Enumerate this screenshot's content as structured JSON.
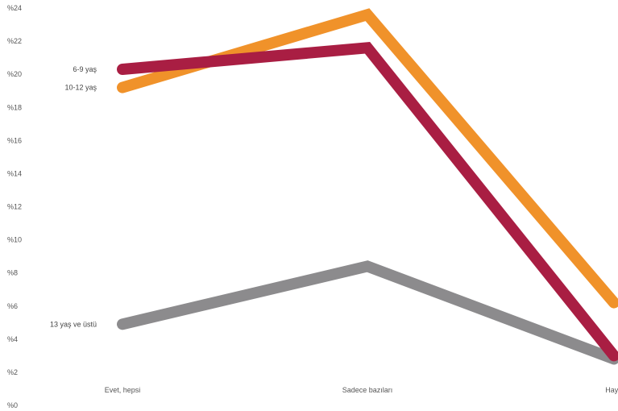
{
  "chart_data": {
    "type": "line",
    "title": "",
    "xlabel": "",
    "ylabel": "",
    "ylim": [
      0,
      24
    ],
    "y_ticks": [
      "%0",
      "%2",
      "%4",
      "%6",
      "%8",
      "%10",
      "%12",
      "%14",
      "%16",
      "%18",
      "%20",
      "%22",
      "%24"
    ],
    "categories": [
      "Evet, hepsi",
      "Sadece bazıları",
      "Hayır"
    ],
    "grid": false,
    "legend": "inline labels at left of lines",
    "series": [
      {
        "name": "6-9 yaş",
        "values": [
          20.3,
          21.6,
          3.0
        ],
        "color": "#a91e43"
      },
      {
        "name": "10-12 yaş",
        "values": [
          19.2,
          23.6,
          6.2
        ],
        "color": "#f0922a"
      },
      {
        "name": "13 yaş ve üstü",
        "values": [
          4.9,
          8.4,
          2.8
        ],
        "color": "#8c8b8d"
      }
    ]
  }
}
